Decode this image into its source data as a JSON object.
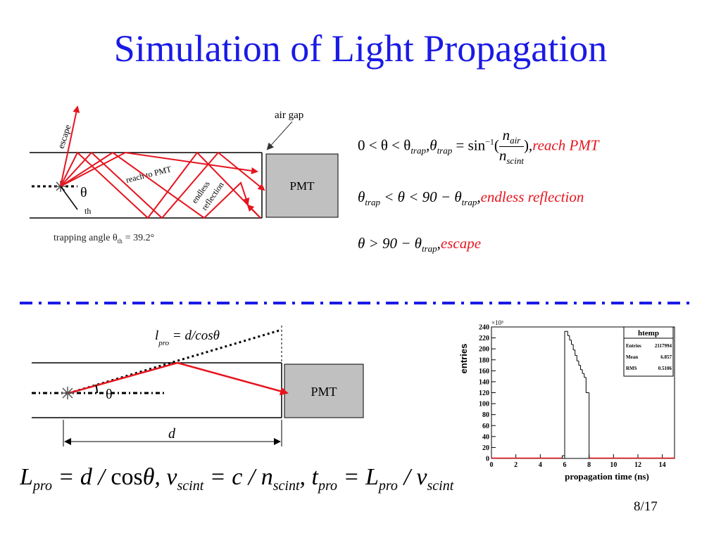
{
  "title": "Simulation of Light Propagation",
  "diagram1": {
    "escape_label": "escape",
    "air_gap_label": "air gap",
    "reach_label": "reach to PMT",
    "endless_label": "endless reflection",
    "endless_line1": "endless",
    "endless_line2": "reflection",
    "theta": "θ",
    "theta_sub": "th",
    "pmt": "PMT",
    "trapping_text": "trapping angle θ",
    "trapping_sub": "th",
    "trapping_value": "= 39.2°"
  },
  "equations": {
    "eq1_cond": "0 < θ < θ",
    "eq1_sub": "trap",
    "eq1_comma": ",θ",
    "eq1_sub2": "trap",
    "eq1_mid": " = sin",
    "eq1_sup": "−1",
    "eq1_open": "(",
    "eq1_num": "n",
    "eq1_num_sub": "air",
    "eq1_den": "n",
    "eq1_den_sub": "scint",
    "eq1_close": "),",
    "eq1_label": "reach PMT",
    "eq2_a": "θ",
    "eq2_sub1": "trap",
    "eq2_b": " < θ < 90 − θ",
    "eq2_sub2": "trap",
    "eq2_comma": ",",
    "eq2_label": "endless reflection",
    "eq3_a": "θ > 90 − θ",
    "eq3_sub": "trap",
    "eq3_comma": ",",
    "eq3_label": "escape"
  },
  "diagram2": {
    "lpro_l": "l",
    "lpro_sub": "pro",
    "lpro_rest": " = d/cosθ",
    "theta": "θ",
    "pmt": "PMT",
    "d": "d"
  },
  "bottom_equation": {
    "L": "L",
    "L_sub": "pro",
    "p1": " = d / ",
    "cos": "cos",
    "p2": "θ, v",
    "v_sub": "scint",
    "p3": " = c / n",
    "n_sub": "scint",
    "p4": ", t",
    "t_sub": "pro",
    "p5": " = L",
    "L2_sub": "pro",
    "p6": " / v",
    "v2_sub": "scint"
  },
  "chart_data": {
    "type": "histogram",
    "title": "htemp",
    "xlabel": "propagation time (ns)",
    "ylabel": "entries",
    "y_multiplier": "×10³",
    "xlim": [
      0,
      15
    ],
    "ylim": [
      0,
      240
    ],
    "xticks": [
      0,
      2,
      4,
      6,
      8,
      10,
      12,
      14
    ],
    "yticks": [
      0,
      20,
      40,
      60,
      80,
      100,
      120,
      140,
      160,
      180,
      200,
      220,
      240
    ],
    "stats": [
      {
        "label": "Entries",
        "value": "2117994"
      },
      {
        "label": "Mean",
        "value": "6.857"
      },
      {
        "label": "RMS",
        "value": "0.5106"
      }
    ],
    "bins": [
      {
        "x0": 5.8,
        "x1": 6.0,
        "y": 5
      },
      {
        "x0": 6.0,
        "x1": 6.25,
        "y": 232
      },
      {
        "x0": 6.25,
        "x1": 6.4,
        "y": 224
      },
      {
        "x0": 6.4,
        "x1": 6.55,
        "y": 216
      },
      {
        "x0": 6.55,
        "x1": 6.7,
        "y": 208
      },
      {
        "x0": 6.7,
        "x1": 6.85,
        "y": 198
      },
      {
        "x0": 6.85,
        "x1": 7.0,
        "y": 188
      },
      {
        "x0": 7.0,
        "x1": 7.15,
        "y": 178
      },
      {
        "x0": 7.15,
        "x1": 7.3,
        "y": 170
      },
      {
        "x0": 7.3,
        "x1": 7.45,
        "y": 162
      },
      {
        "x0": 7.45,
        "x1": 7.6,
        "y": 155
      },
      {
        "x0": 7.6,
        "x1": 7.75,
        "y": 148
      },
      {
        "x0": 7.75,
        "x1": 8.0,
        "y": 120
      }
    ]
  },
  "page_number": "8/17"
}
